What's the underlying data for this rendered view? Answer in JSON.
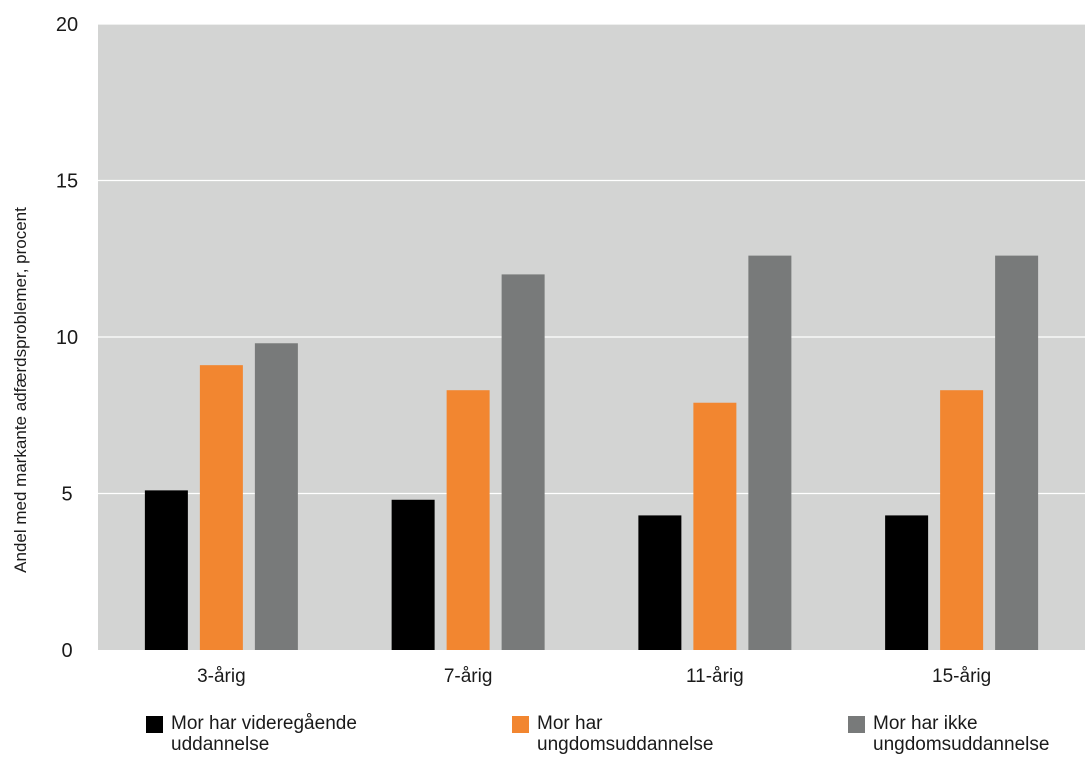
{
  "chart_data": {
    "type": "bar",
    "ylabel": "Andel med markante adfærdsproblemer, procent",
    "ylim": [
      0,
      20
    ],
    "yticks": [
      0,
      5,
      10,
      15,
      20
    ],
    "grid": true,
    "legend_position": "bottom",
    "categories": [
      "3-årig",
      "7-årig",
      "11-årig",
      "15-årig"
    ],
    "series": [
      {
        "name_lines": [
          "Mor har videregående",
          "uddannelse"
        ],
        "color": "#000000",
        "values": [
          5.1,
          4.8,
          4.3,
          4.3
        ]
      },
      {
        "name_lines": [
          "Mor har",
          "ungdomsuddannelse"
        ],
        "color": "#f28630",
        "values": [
          9.1,
          8.3,
          7.9,
          8.3
        ]
      },
      {
        "name_lines": [
          "Mor har ikke",
          "ungdomsuddannelse"
        ],
        "color": "#787a7a",
        "values": [
          9.8,
          12.0,
          12.6,
          12.6
        ]
      }
    ],
    "colors": {
      "plot_background": "#d3d4d3",
      "gridline": "#ffffff"
    }
  }
}
